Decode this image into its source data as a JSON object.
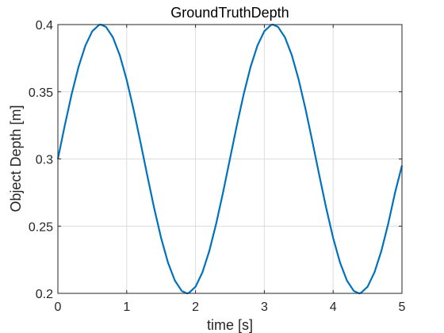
{
  "chart_data": {
    "type": "line",
    "title": "GroundTruthDepth",
    "xlabel": "time [s]",
    "ylabel": "Object Depth [m]",
    "xlim": [
      0,
      5
    ],
    "ylim": [
      0.2,
      0.4
    ],
    "grid": true,
    "x_ticks": [
      0,
      1,
      2,
      3,
      4,
      5
    ],
    "x_tick_labels": [
      "0",
      "1",
      "2",
      "3",
      "4",
      "5"
    ],
    "y_ticks": [
      0.2,
      0.25,
      0.3,
      0.35,
      0.4
    ],
    "y_tick_labels": [
      "0.2",
      "0.25",
      "0.3",
      "0.35",
      "0.4"
    ],
    "series": [
      {
        "color": "#0072bd",
        "x": [
          0,
          0.1,
          0.2,
          0.3,
          0.4,
          0.5,
          0.6,
          0.625,
          0.7,
          0.8,
          0.9,
          1.0,
          1.1,
          1.2,
          1.25,
          1.3,
          1.4,
          1.5,
          1.6,
          1.7,
          1.8,
          1.875,
          1.9,
          2.0,
          2.1,
          2.2,
          2.3,
          2.4,
          2.5,
          2.6,
          2.7,
          2.8,
          2.9,
          3.0,
          3.1,
          3.125,
          3.2,
          3.3,
          3.4,
          3.5,
          3.6,
          3.7,
          3.75,
          3.8,
          3.9,
          4.0,
          4.1,
          4.2,
          4.3,
          4.375,
          4.4,
          4.5,
          4.6,
          4.7,
          4.8,
          4.9,
          5.0
        ],
        "y": [
          0.3,
          0.3249,
          0.3482,
          0.3685,
          0.3844,
          0.3951,
          0.3998,
          0.4,
          0.3982,
          0.3905,
          0.3771,
          0.3588,
          0.3368,
          0.3125,
          0.3,
          0.2875,
          0.2632,
          0.2412,
          0.2229,
          0.2095,
          0.2018,
          0.2,
          0.2002,
          0.2049,
          0.2156,
          0.2315,
          0.2518,
          0.2751,
          0.3,
          0.3249,
          0.3482,
          0.3685,
          0.3844,
          0.3951,
          0.3998,
          0.4,
          0.3982,
          0.3905,
          0.3771,
          0.3588,
          0.3368,
          0.3125,
          0.3,
          0.2875,
          0.2632,
          0.2412,
          0.2229,
          0.2095,
          0.2018,
          0.2,
          0.2002,
          0.2049,
          0.2156,
          0.2315,
          0.2518,
          0.2751,
          0.2951
        ]
      }
    ]
  }
}
